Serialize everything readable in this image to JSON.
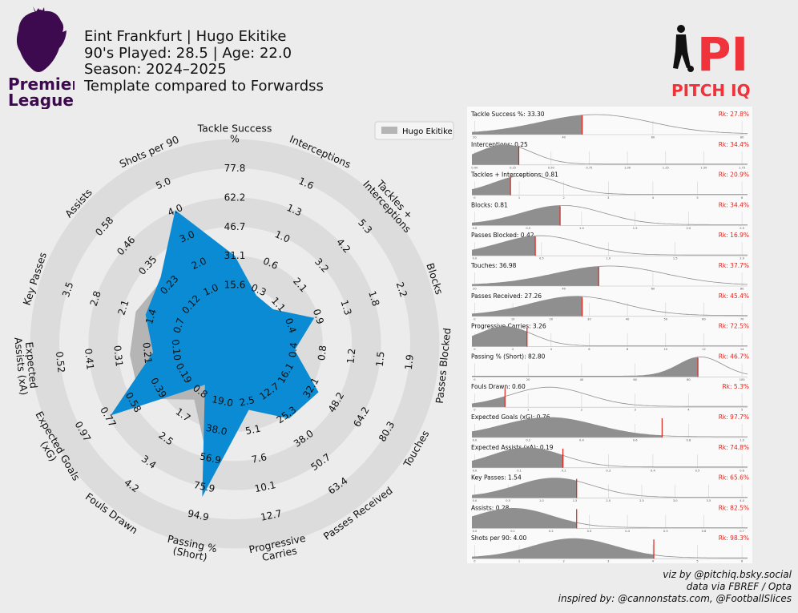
{
  "header": {
    "line1": "Eint Frankfurt | Hugo Ekitike",
    "line2": "90's Played: 28.5 | Age: 22.0",
    "line3": "Season: 2024–2025",
    "line4": "Template compared to Forwardss"
  },
  "logos": {
    "league_line1": "Premier",
    "league_line2": "League",
    "brand_mark": "PI",
    "brand_name": "PITCH IQ"
  },
  "credits": {
    "line1": "viz by @pitchiq.bsky.social",
    "line2": "data via FBREF / Opta",
    "line3": "inspired by: @cannonstats.com, @FootballSlices"
  },
  "colors": {
    "background": "#ececec",
    "ring": "#dcdcdc",
    "player_fill": "#0a8bd4",
    "template_fill": "#b5b5b5",
    "rank_text": "#e0241b",
    "marker": "#e0241b",
    "league_purple": "#3d0a4f",
    "brand_red": "#f0323a"
  },
  "chart_data": [
    {
      "type": "radar",
      "legend": {
        "label": "Hugo Ekitike",
        "position": "top-right"
      },
      "axes": [
        {
          "label": "Tackle Success\n%",
          "ticks": [
            "15.6",
            "31.1",
            "46.7",
            "62.2",
            "77.8"
          ],
          "player": 2.0,
          "template": 2.0
        },
        {
          "label": "Interceptions",
          "ticks": [
            "0.3",
            "0.6",
            "1.0",
            "1.3",
            "1.6"
          ],
          "player": 0.8,
          "template": 0.8
        },
        {
          "label": "Tackles +\nInterceptions",
          "ticks": [
            "1.1",
            "2.1",
            "3.2",
            "4.2",
            "5.3"
          ],
          "player": 0.75,
          "template": 0.75
        },
        {
          "label": "Blocks",
          "ticks": [
            "0.4",
            "0.9",
            "1.3",
            "1.8",
            "2.2"
          ],
          "player": 1.85,
          "template": 1.85
        },
        {
          "label": "Passes Blocked",
          "ticks": [
            "0.4",
            "0.8",
            "1.2",
            "1.5",
            "1.9"
          ],
          "player": 1.05,
          "template": 1.05
        },
        {
          "label": "Touches",
          "ticks": [
            "16.1",
            "32.1",
            "48.2",
            "64.2",
            "80.3"
          ],
          "player": 2.3,
          "template": 2.3
        },
        {
          "label": "Passes Received",
          "ticks": [
            "12.7",
            "25.3",
            "38.0",
            "50.7",
            "63.4"
          ],
          "player": 2.15,
          "template": 2.15
        },
        {
          "label": "Progressive\nCarries",
          "ticks": [
            "2.5",
            "5.1",
            "7.6",
            "10.1",
            "12.7"
          ],
          "player": 1.3,
          "template": 1.3
        },
        {
          "label": "Passing %\n(Short)",
          "ticks": [
            "19.0",
            "38.0",
            "56.9",
            "75.9",
            "94.9"
          ],
          "player": 4.35,
          "template": 3.25
        },
        {
          "label": "Fouls Drawn",
          "ticks": [
            "0.8",
            "1.7",
            "2.5",
            "3.4",
            "4.2"
          ],
          "player": 0.72,
          "template": 1.35
        },
        {
          "label": "Expected Goals\n(xG)",
          "ticks": [
            "0.19",
            "0.39",
            "0.58",
            "0.77",
            "0.97"
          ],
          "player": 3.9,
          "template": 2.75
        },
        {
          "label": "Expected\nAssists (xA)",
          "ticks": [
            "0.10",
            "0.21",
            "0.31",
            "0.41",
            "0.52"
          ],
          "player": 1.8,
          "template": 2.6
        },
        {
          "label": "Key Passes",
          "ticks": [
            "0.7",
            "1.4",
            "2.1",
            "2.8",
            "3.5"
          ],
          "player": 2.2,
          "template": 2.55
        },
        {
          "label": "Assists",
          "ticks": [
            "0.12",
            "0.23",
            "0.35",
            "0.46",
            "0.58"
          ],
          "player": 2.4,
          "template": 2.3
        },
        {
          "label": "Shots per 90",
          "ticks": [
            "1.0",
            "2.0",
            "3.0",
            "4.0",
            "5.0"
          ],
          "player": 4.0,
          "template": 3.1
        }
      ]
    },
    {
      "type": "area",
      "panels": [
        {
          "label": "Tackle Success %: 33.30",
          "rank": "Rk: 27.8%",
          "ticks": [
            "20",
            "40",
            "60",
            "80"
          ],
          "marker": 0.4,
          "mode": 0.45,
          "width": 0.2
        },
        {
          "label": "Interceptions: 0.25",
          "rank": "Rk: 34.4%",
          "ticks": [
            "0.00",
            "0.25",
            "0.50",
            "0.75",
            "1.00",
            "1.25",
            "1.50",
            "1.75"
          ],
          "marker": 0.17,
          "mode": 0.12,
          "width": 0.1
        },
        {
          "label": "Tackles + Interceptions: 0.81",
          "rank": "Rk: 20.9%",
          "ticks": [
            "0",
            "1",
            "2",
            "3",
            "4",
            "5",
            "6"
          ],
          "marker": 0.14,
          "mode": 0.2,
          "width": 0.12
        },
        {
          "label": "Blocks: 0.81",
          "rank": "Rk: 34.4%",
          "ticks": [
            "0.0",
            "0.5",
            "1.0",
            "1.5",
            "2.0",
            "2.5"
          ],
          "marker": 0.32,
          "mode": 0.33,
          "width": 0.15
        },
        {
          "label": "Passes Blocked: 0.42",
          "rank": "Rk: 16.9%",
          "ticks": [
            "0.0",
            "0.5",
            "1.0",
            "1.5",
            "2.0"
          ],
          "marker": 0.23,
          "mode": 0.25,
          "width": 0.15
        },
        {
          "label": "Touches: 36.98",
          "rank": "Rk: 37.7%",
          "ticks": [
            "20",
            "40",
            "60",
            "80"
          ],
          "marker": 0.46,
          "mode": 0.5,
          "width": 0.2
        },
        {
          "label": "Passes Received: 27.26",
          "rank": "Rk: 45.4%",
          "ticks": [
            "0",
            "10",
            "20",
            "30",
            "40",
            "50",
            "60",
            "70"
          ],
          "marker": 0.4,
          "mode": 0.38,
          "width": 0.17
        },
        {
          "label": "Progressive Carries: 3.26",
          "rank": "Rk: 72.5%",
          "ticks": [
            "0",
            "2",
            "4",
            "6",
            "8",
            "10",
            "12",
            "14"
          ],
          "marker": 0.2,
          "mode": 0.12,
          "width": 0.1
        },
        {
          "label": "Passing % (Short): 82.80",
          "rank": "Rk: 46.7%",
          "ticks": [
            "0",
            "20",
            "40",
            "60",
            "80",
            "100"
          ],
          "marker": 0.82,
          "mode": 0.83,
          "width": 0.08
        },
        {
          "label": "Fouls Drawn: 0.60",
          "rank": "Rk: 5.3%",
          "ticks": [
            "0",
            "1",
            "2",
            "3",
            "4",
            "5"
          ],
          "marker": 0.12,
          "mode": 0.28,
          "width": 0.14
        },
        {
          "label": "Expected Goals (xG): 0.76",
          "rank": "Rk: 97.7%",
          "ticks": [
            "0.0",
            "0.2",
            "0.4",
            "0.6",
            "0.8",
            "1.0"
          ],
          "marker": 0.69,
          "mode": 0.28,
          "width": 0.17
        },
        {
          "label": "Expected Assists (xA): 0.19",
          "rank": "Rk: 74.8%",
          "ticks": [
            "0.0",
            "0.1",
            "0.2",
            "0.3",
            "0.4",
            "0.5",
            "0.6"
          ],
          "marker": 0.33,
          "mode": 0.2,
          "width": 0.13
        },
        {
          "label": "Key Passes: 1.54",
          "rank": "Rk: 65.6%",
          "ticks": [
            "0.0",
            "0.5",
            "1.0",
            "1.5",
            "2.0",
            "2.5",
            "3.0",
            "3.5",
            "4.0"
          ],
          "marker": 0.38,
          "mode": 0.3,
          "width": 0.14
        },
        {
          "label": "Assists: 0.28",
          "rank": "Rk: 82.5%",
          "ticks": [
            "0.0",
            "0.1",
            "0.2",
            "0.3",
            "0.4",
            "0.5",
            "0.6",
            "0.7"
          ],
          "marker": 0.38,
          "mode": 0.15,
          "width": 0.14
        },
        {
          "label": "Shots per 90: 4.00",
          "rank": "Rk: 98.3%",
          "ticks": [
            "0",
            "1",
            "2",
            "3",
            "4",
            "5",
            "6"
          ],
          "marker": 0.66,
          "mode": 0.37,
          "width": 0.15
        }
      ]
    }
  ]
}
